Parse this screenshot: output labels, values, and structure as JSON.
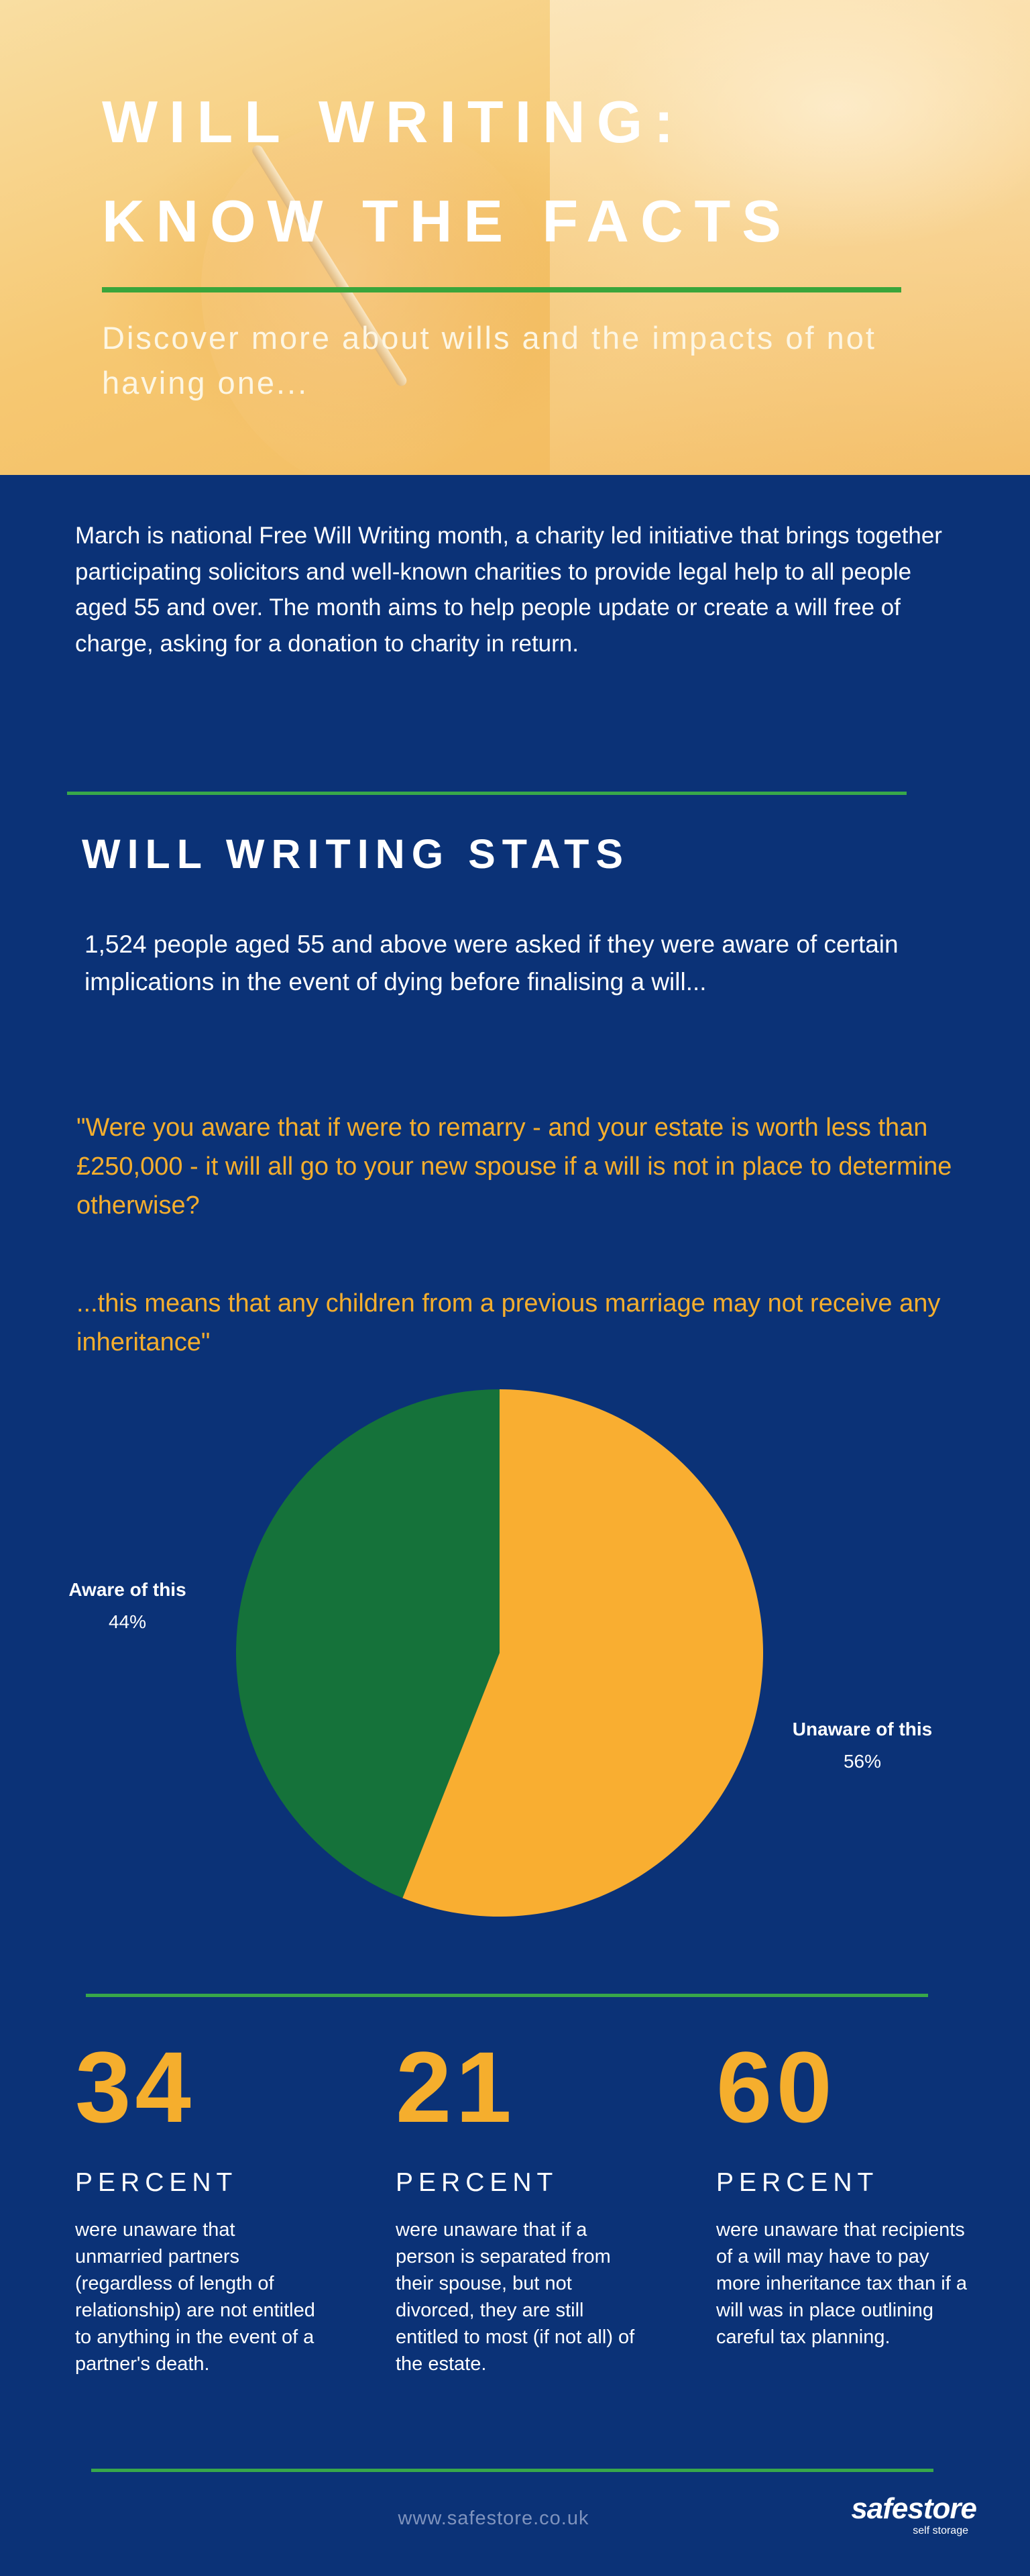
{
  "header": {
    "title_line1": "WILL WRITING:",
    "title_line2": "KNOW THE FACTS",
    "subtitle": "Discover more about wills and the impacts of not having one..."
  },
  "intro": "March is national Free Will Writing month, a charity led initiative that brings together participating solicitors and well-known charities to provide legal help to all people aged 55 and over.  The month aims to help people update or create a will free of charge, asking for a donation to charity in return.",
  "stats_section": {
    "heading": "WILL WRITING STATS",
    "intro": "1,524 people aged 55 and above were asked if they were aware of certain implications in the event of dying before finalising a will...",
    "quote_part1": "\"Were you aware that if were to remarry - and your estate is worth less than £250,000 - it will all go to your new spouse if a will is not in place to determine otherwise?",
    "quote_part2": "...this means that any children from a previous marriage may not receive any inheritance\""
  },
  "chart_data": {
    "type": "pie",
    "slices": [
      {
        "label": "Aware of this",
        "value": 44,
        "value_label": "44%",
        "color": "#15723a"
      },
      {
        "label": "Unaware of this",
        "value": 56,
        "value_label": "56%",
        "color": "#f9ae31"
      }
    ]
  },
  "big_stats": [
    {
      "number": "34",
      "unit": "PERCENT",
      "description": "were unaware that unmarried partners (regardless of length of relationship) are not entitled to anything in the event of a partner's death."
    },
    {
      "number": "21",
      "unit": "PERCENT",
      "description": "were unaware that if a person is separated from their spouse, but not divorced, they are still entitled to most (if not all) of the estate."
    },
    {
      "number": "60",
      "unit": "PERCENT",
      "description": "were unaware that recipients of a will may have to pay more inheritance tax than if a will was in place outlining careful tax planning."
    }
  ],
  "footer": {
    "url": "www.safestore.co.uk",
    "brand": "safestore",
    "tagline": "self storage"
  },
  "colors": {
    "background": "#0b3277",
    "accent_orange": "#f5ae2d",
    "rule_green": "#38a84a"
  }
}
